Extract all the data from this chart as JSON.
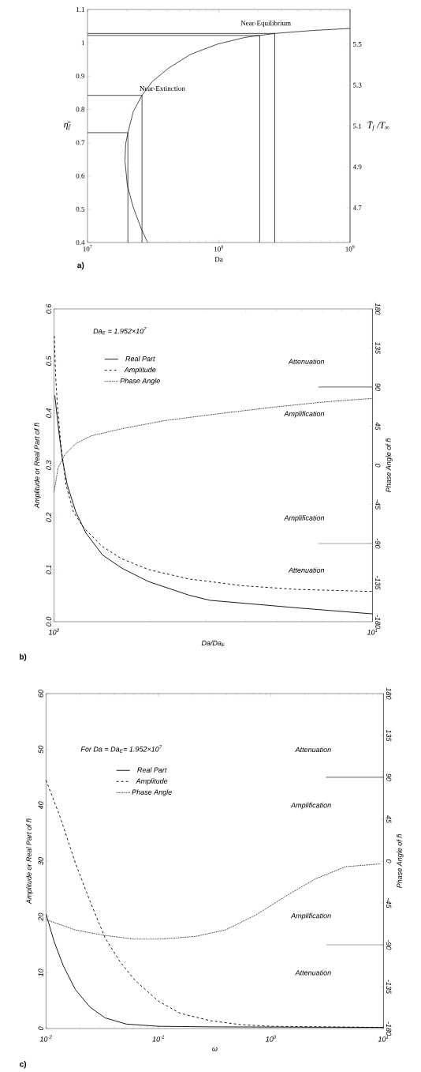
{
  "chart_data": [
    {
      "type": "line",
      "title": "a)",
      "xlabel": "Da",
      "ylabel": "η̄$_{f}$",
      "y2label": "T̄$_{f}$ /T$_{∞}$",
      "log": "x",
      "xlim": [
        10000000,
        1000000000
      ],
      "ylim": [
        0.4,
        1.1
      ],
      "y2lim": [
        4.53,
        5.67
      ],
      "xticks": [
        {
          "value": 10000000,
          "label": "10$^{7}$"
        },
        {
          "value": 100000000,
          "label": "10$^{8}$"
        },
        {
          "value": 1000000000,
          "label": "10$^{9}$"
        }
      ],
      "yticks": [
        0.4,
        0.5,
        0.6,
        0.7,
        0.8,
        0.9,
        1,
        1.1
      ],
      "y2ticks": [
        4.7,
        4.9,
        5.1,
        5.3,
        5.5
      ],
      "annotations": [
        "Near-Equilibrium",
        "Near-Extinction"
      ],
      "series": [
        {
          "color": "#000000",
          "line_style": "solid",
          "x": [
            28700000,
            25700000,
            22300000,
            20100000,
            19300000,
            19500000,
            20300000,
            22300000,
            26000000,
            31100000,
            41500000,
            60700000,
            97700000,
            158000000,
            205000000,
            267000000,
            520000000,
            1000000000
          ],
          "values": [
            0.4,
            0.441,
            0.506,
            0.572,
            0.645,
            0.695,
            0.73,
            0.793,
            0.842,
            0.883,
            0.924,
            0.965,
            0.996,
            1.016,
            1.022,
            1.028,
            1.037,
            1.043
          ]
        },
        {
          "color": "#000000",
          "line_style": "solid",
          "x": [
            10000000,
            20300000,
            20300000
          ],
          "values": [
            0.73,
            0.73,
            0.4
          ]
        },
        {
          "color": "#000000",
          "line_style": "solid",
          "x": [
            10000000,
            26000000,
            26000000
          ],
          "values": [
            0.842,
            0.842,
            0.4
          ]
        },
        {
          "color": "#000000",
          "line_style": "solid",
          "x": [
            10000000,
            205000000,
            205000000
          ],
          "values": [
            1.022,
            1.022,
            0.4
          ]
        },
        {
          "color": "#000000",
          "line_style": "solid",
          "x": [
            10000000,
            267000000,
            267000000
          ],
          "values": [
            1.028,
            1.028,
            0.4
          ]
        }
      ]
    },
    {
      "type": "line",
      "title": "b)",
      "xlabel": "Da/Da$_{E}$",
      "ylabel": "Amplitude or Real Part of h̃",
      "y2label": "Phase Angle of h̃",
      "log": "x",
      "legend": "top left",
      "xlim": [
        1,
        10
      ],
      "ylim": [
        0,
        0.6
      ],
      "y2lim": [
        -180,
        180
      ],
      "xticks": [
        {
          "value": 1,
          "label": "10$^{0}$"
        },
        {
          "value": 10,
          "label": "10$^{1}$"
        }
      ],
      "yticks": [
        {
          "value": 0,
          "label": "0.0"
        },
        0.1,
        0.2,
        0.3,
        0.4,
        0.5,
        0.6
      ],
      "y2ticks": [
        -180,
        -135,
        -90,
        -45,
        0,
        45,
        90,
        135,
        180
      ],
      "ref_lines": [
        {
          "axis": "y2",
          "value": 90
        },
        {
          "axis": "y2",
          "value": -90
        }
      ],
      "annotations": [
        "Da$_{E}$ = 1.952×10$^{7}$",
        "Attenuation",
        "Amplification",
        "Amplification",
        "Attenuation"
      ],
      "series": [
        {
          "name": "Real Part",
          "color": "#000000",
          "line_style": "solid",
          "x": [
            1.006,
            1.03,
            1.06,
            1.1,
            1.17,
            1.26,
            1.42,
            1.63,
            1.98,
            2.65,
            3.09,
            5.95,
            10
          ],
          "values": [
            0.434,
            0.377,
            0.315,
            0.263,
            0.211,
            0.17,
            0.128,
            0.103,
            0.077,
            0.051,
            0.041,
            0.026,
            0.015
          ]
        },
        {
          "name": "Amplitude",
          "color": "#000000",
          "line_style": "dashed",
          "x": [
            1.002,
            1.012,
            1.024,
            1.05,
            1.09,
            1.15,
            1.24,
            1.42,
            1.63,
            1.98,
            2.65,
            3.92,
            5.77,
            10
          ],
          "values": [
            0.548,
            0.47,
            0.419,
            0.341,
            0.263,
            0.211,
            0.18,
            0.144,
            0.121,
            0.1,
            0.082,
            0.069,
            0.062,
            0.058
          ]
        },
        {
          "name": "Phase Angle",
          "color": "#000000",
          "line_style": "dotted",
          "axis": "y2",
          "x": [
            1,
            1.03,
            1.08,
            1.17,
            1.31,
            1.63,
            2.19,
            3.22,
            4.92,
            7.1,
            10
          ],
          "values": [
            -31,
            -3,
            12,
            25,
            34,
            42,
            51,
            59,
            67,
            73,
            77
          ]
        }
      ]
    },
    {
      "type": "line",
      "title": "c)",
      "xlabel": "ω",
      "ylabel": "Amplitude or Real Part of h̃",
      "y2label": "Phase Angle of h̃",
      "log": "x",
      "legend": "top left",
      "xlim": [
        0.01,
        10
      ],
      "ylim": [
        0,
        60
      ],
      "y2lim": [
        -180,
        180
      ],
      "xticks": [
        {
          "value": 0.01,
          "label": "10$^{-2}$"
        },
        {
          "value": 0.1,
          "label": "10$^{-1}$"
        },
        {
          "value": 1,
          "label": "10$^{0}$"
        },
        {
          "value": 10,
          "label": "10$^{1}$"
        }
      ],
      "yticks": [
        0,
        10,
        20,
        30,
        40,
        50,
        60
      ],
      "y2ticks": [
        -180,
        -135,
        -90,
        -45,
        0,
        45,
        90,
        135,
        180
      ],
      "ref_lines": [
        {
          "axis": "y2",
          "value": 90
        },
        {
          "axis": "y2",
          "value": -90
        }
      ],
      "annotations": [
        "For Da = Da$_{E}$= 1.952×10$^{7}$",
        "Attenuation",
        "Amplification",
        "Amplification",
        "Attenuation"
      ],
      "series": [
        {
          "name": "Real Part",
          "color": "#000000",
          "line_style": "solid",
          "x": [
            0.01,
            0.0118,
            0.0142,
            0.0182,
            0.0247,
            0.0336,
            0.0518,
            0.1,
            0.29,
            10
          ],
          "values": [
            20.5,
            15.6,
            11.3,
            7,
            3.8,
            1.9,
            0.8,
            0.4,
            0.3,
            0.2
          ]
        },
        {
          "name": "Amplitude",
          "color": "#000000",
          "line_style": "dashed",
          "x": [
            0.01,
            0.0134,
            0.0182,
            0.0247,
            0.0336,
            0.0457,
            0.0621,
            0.1,
            0.157,
            0.29,
            0.537,
            1,
            10
          ],
          "values": [
            44.5,
            37.8,
            29.7,
            22.7,
            16.2,
            11.9,
            8.6,
            4.9,
            2.7,
            1.4,
            0.7,
            0.4,
            0.2
          ]
        },
        {
          "name": "Phase Angle",
          "color": "#000000",
          "line_style": "dotted",
          "axis": "y2",
          "x": [
            0.01,
            0.0182,
            0.0336,
            0.0621,
            0.1,
            0.213,
            0.394,
            0.733,
            1.34,
            2.49,
            4.63,
            9.4
          ],
          "values": [
            -63,
            -74,
            -80,
            -84,
            -84,
            -81,
            -74,
            -58,
            -38,
            -19,
            -6,
            -3
          ]
        }
      ]
    }
  ]
}
